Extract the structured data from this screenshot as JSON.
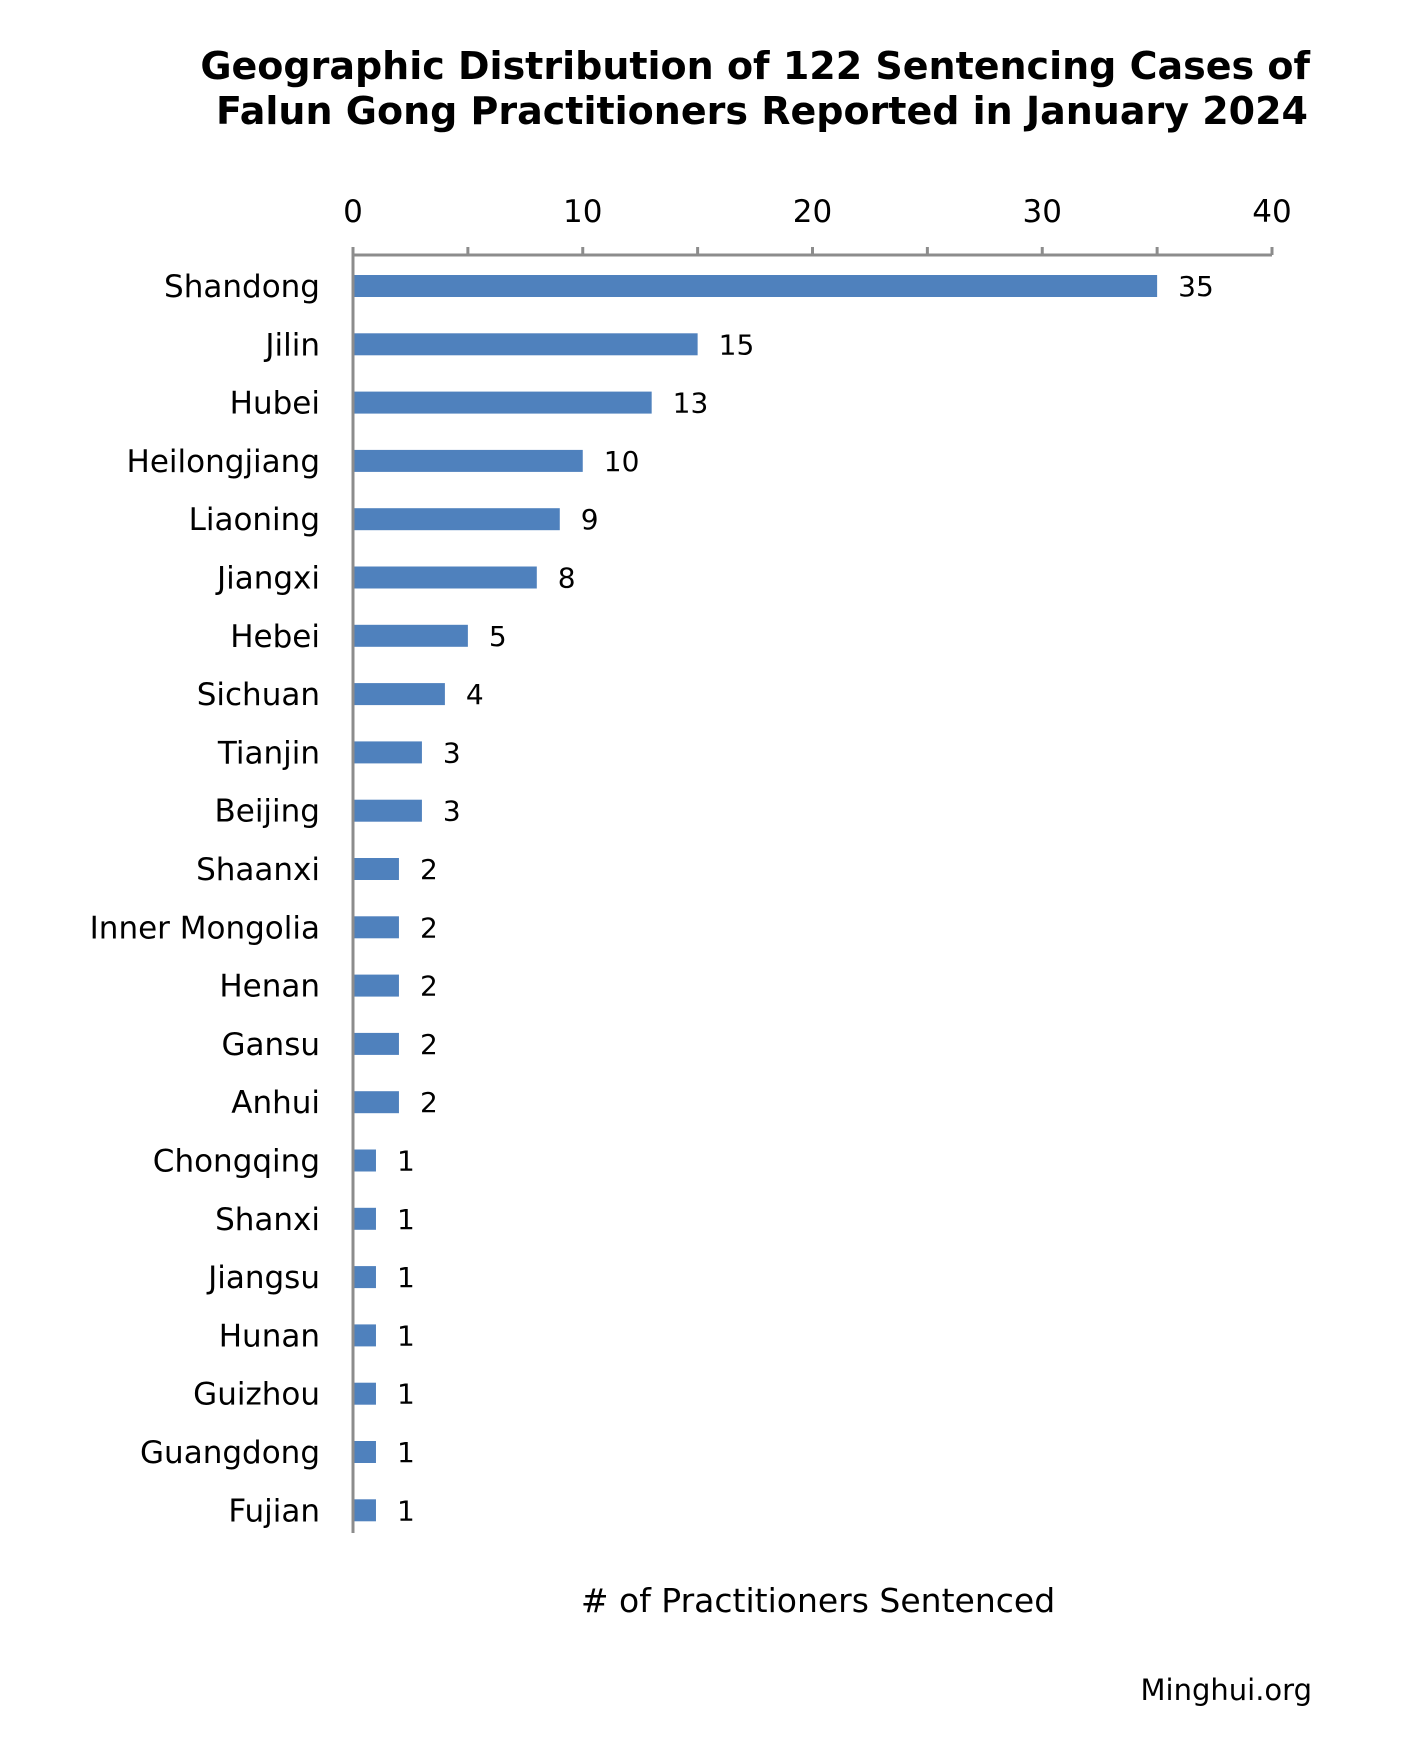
{
  "chart_data": {
    "type": "bar",
    "orientation": "horizontal",
    "title_lines": [
      "Geographic Distribution of 122 Sentencing Cases of",
      "Falun Gong Practitioners Reported in January 2024"
    ],
    "xlabel": "# of Practitioners Sentenced",
    "ylabel": "",
    "xlim": [
      0,
      40
    ],
    "x_ticks": [
      "0",
      "10",
      "20",
      "30",
      "40"
    ],
    "x_tick_values": [
      0,
      10,
      20,
      30,
      40
    ],
    "x_axis_position": "top",
    "grid": false,
    "legend": "none",
    "bar_color": "#4f81bd",
    "categories": [
      "Shandong",
      "Jilin",
      "Hubei",
      "Heilongjiang",
      "Liaoning",
      "Jiangxi",
      "Hebei",
      "Sichuan",
      "Tianjin",
      "Beijing",
      "Shaanxi",
      "Inner Mongolia",
      "Henan",
      "Gansu",
      "Anhui",
      "Chongqing",
      "Shanxi",
      "Jiangsu",
      "Hunan",
      "Guizhou",
      "Guangdong",
      "Fujian"
    ],
    "values": [
      35,
      15,
      13,
      10,
      9,
      8,
      5,
      4,
      3,
      3,
      2,
      2,
      2,
      2,
      2,
      1,
      1,
      1,
      1,
      1,
      1,
      1
    ],
    "value_labels": [
      "35",
      "15",
      "13",
      "10",
      "9",
      "8",
      "5",
      "4",
      "3",
      "3",
      "2",
      "2",
      "2",
      "2",
      "2",
      "1",
      "1",
      "1",
      "1",
      "1",
      "1",
      "1"
    ]
  },
  "source": "Minghui.org"
}
